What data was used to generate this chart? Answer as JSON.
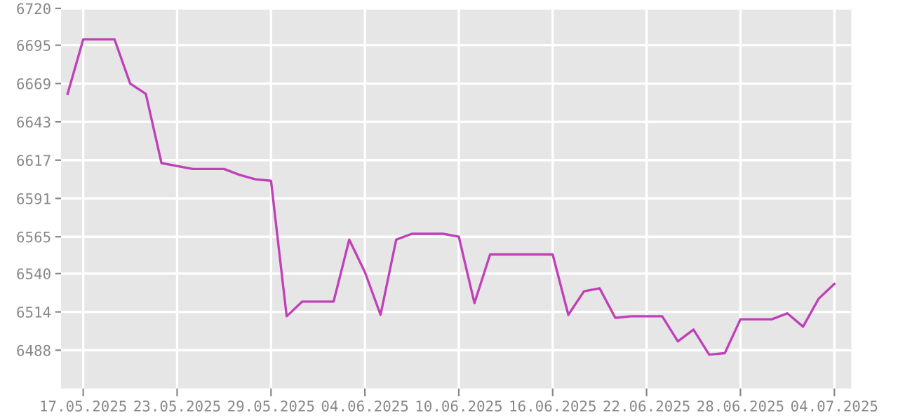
{
  "chart_data": {
    "type": "line",
    "grid": true,
    "marker": "none",
    "line_style": "solid",
    "x": [
      "2025-05-16",
      "2025-05-17",
      "2025-05-18",
      "2025-05-19",
      "2025-05-20",
      "2025-05-21",
      "2025-05-22",
      "2025-05-23",
      "2025-05-24",
      "2025-05-25",
      "2025-05-26",
      "2025-05-27",
      "2025-05-28",
      "2025-05-29",
      "2025-05-30",
      "2025-05-31",
      "2025-06-01",
      "2025-06-02",
      "2025-06-03",
      "2025-06-04",
      "2025-06-05",
      "2025-06-06",
      "2025-06-07",
      "2025-06-08",
      "2025-06-09",
      "2025-06-10",
      "2025-06-11",
      "2025-06-12",
      "2025-06-13",
      "2025-06-14",
      "2025-06-15",
      "2025-06-16",
      "2025-06-17",
      "2025-06-18",
      "2025-06-19",
      "2025-06-20",
      "2025-06-21",
      "2025-06-22",
      "2025-06-23",
      "2025-06-24",
      "2025-06-25",
      "2025-06-26",
      "2025-06-27",
      "2025-06-28",
      "2025-06-29",
      "2025-06-30",
      "2025-07-01",
      "2025-07-02",
      "2025-07-03",
      "2025-07-04"
    ],
    "series": [
      {
        "color": "#c040b8",
        "values": [
          6662,
          6699,
          6699,
          6699,
          6669,
          6662,
          6615,
          6613,
          6611,
          6611,
          6611,
          6607,
          6604,
          6603,
          6511,
          6521,
          6521,
          6521,
          6563,
          6541,
          6512,
          6563,
          6567,
          6567,
          6567,
          6565,
          6520,
          6553,
          6553,
          6553,
          6553,
          6553,
          6512,
          6528,
          6530,
          6510,
          6511,
          6511,
          6511,
          6494,
          6502,
          6485,
          6486,
          6509,
          6509,
          6509,
          6513,
          6504,
          6523,
          6533
        ]
      }
    ],
    "xlim": [
      "2025-05-15T14:00",
      "2025-07-05T02:00"
    ],
    "xticks": [
      {
        "value": "2025-05-17",
        "label": "17.05.2025"
      },
      {
        "value": "2025-05-23",
        "label": "23.05.2025"
      },
      {
        "value": "2025-05-29",
        "label": "29.05.2025"
      },
      {
        "value": "2025-06-04",
        "label": "04.06.2025"
      },
      {
        "value": "2025-06-10",
        "label": "10.06.2025"
      },
      {
        "value": "2025-06-16",
        "label": "16.06.2025"
      },
      {
        "value": "2025-06-22",
        "label": "22.06.2025"
      },
      {
        "value": "2025-06-28",
        "label": "28.06.2025"
      },
      {
        "value": "2025-07-04",
        "label": "04.07.2025"
      }
    ],
    "ylim": [
      6462,
      6720
    ],
    "yticks": [
      6488,
      6514,
      6540,
      6565,
      6591,
      6617,
      6643,
      6669,
      6695,
      6720
    ]
  }
}
